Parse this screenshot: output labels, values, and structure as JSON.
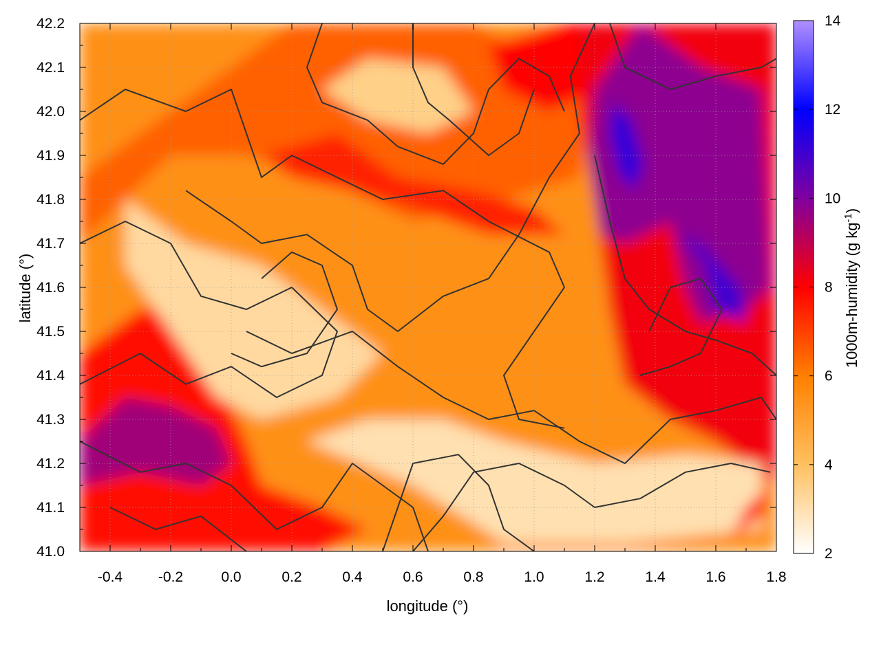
{
  "chart_data": {
    "type": "heatmap",
    "title": "",
    "xlabel": "longitude (°)",
    "ylabel": "latitude (°)",
    "colorbar_label_main": "1000m-humidity (g kg",
    "colorbar_label_exp": "-1",
    "colorbar_label_end": ")",
    "xlim": [
      -0.5,
      1.8
    ],
    "ylim": [
      41.0,
      42.2
    ],
    "x_ticks": [
      "-0.4",
      "-0.2",
      "0.0",
      "0.2",
      "0.4",
      "0.6",
      "0.8",
      "1.0",
      "1.2",
      "1.4",
      "1.6",
      "1.8"
    ],
    "x_tick_values": [
      -0.4,
      -0.2,
      0.0,
      0.2,
      0.4,
      0.6,
      0.8,
      1.0,
      1.2,
      1.4,
      1.6,
      1.8
    ],
    "y_ticks": [
      "41.0",
      "41.1",
      "41.2",
      "41.3",
      "41.4",
      "41.5",
      "41.6",
      "41.7",
      "41.8",
      "41.9",
      "42.0",
      "42.1",
      "42.2"
    ],
    "y_tick_values": [
      41.0,
      41.1,
      41.2,
      41.3,
      41.4,
      41.5,
      41.6,
      41.7,
      41.8,
      41.9,
      42.0,
      42.1,
      42.2
    ],
    "colorbar_range": [
      2,
      14
    ],
    "colorbar_ticks": [
      "2",
      "4",
      "6",
      "8",
      "10",
      "12",
      "14"
    ],
    "colorbar_tick_values": [
      2,
      4,
      6,
      8,
      10,
      12,
      14
    ],
    "colorscale": [
      {
        "v": 2,
        "color": "#ffffff"
      },
      {
        "v": 4,
        "color": "#ffc060"
      },
      {
        "v": 6,
        "color": "#ff8000"
      },
      {
        "v": 8,
        "color": "#ff0000"
      },
      {
        "v": 10,
        "color": "#8000a0"
      },
      {
        "v": 12,
        "color": "#0000ff"
      },
      {
        "v": 14,
        "color": "#b090ff"
      }
    ],
    "grid": true,
    "humidity_regions": [
      {
        "name": "background",
        "value": 5.5,
        "points": [
          [
            -0.5,
            41.0
          ],
          [
            1.8,
            41.0
          ],
          [
            1.8,
            42.2
          ],
          [
            -0.5,
            42.2
          ]
        ]
      },
      {
        "name": "north-orange",
        "value": 6.5,
        "points": [
          [
            -0.5,
            41.85
          ],
          [
            -0.3,
            41.95
          ],
          [
            -0.1,
            42.05
          ],
          [
            0.2,
            42.2
          ],
          [
            0.8,
            42.2
          ],
          [
            1.2,
            42.05
          ],
          [
            1.15,
            41.85
          ],
          [
            0.9,
            41.8
          ],
          [
            0.6,
            41.75
          ],
          [
            0.3,
            41.85
          ],
          [
            0.05,
            41.9
          ],
          [
            -0.2,
            41.9
          ],
          [
            -0.5,
            41.7
          ]
        ]
      },
      {
        "name": "red-band-north",
        "value": 7.5,
        "points": [
          [
            0.1,
            41.9
          ],
          [
            0.35,
            41.95
          ],
          [
            0.55,
            41.85
          ],
          [
            0.8,
            41.82
          ],
          [
            1.0,
            41.78
          ],
          [
            1.1,
            41.72
          ],
          [
            0.85,
            41.72
          ],
          [
            0.6,
            41.78
          ],
          [
            0.4,
            41.82
          ],
          [
            0.2,
            41.85
          ]
        ]
      },
      {
        "name": "red-northeast-top",
        "value": 8.0,
        "points": [
          [
            0.85,
            42.15
          ],
          [
            1.1,
            42.2
          ],
          [
            1.3,
            42.2
          ],
          [
            1.2,
            42.05
          ],
          [
            1.05,
            42.0
          ],
          [
            0.9,
            42.05
          ]
        ]
      },
      {
        "name": "east-red",
        "value": 8.2,
        "points": [
          [
            1.15,
            42.2
          ],
          [
            1.8,
            42.2
          ],
          [
            1.8,
            41.15
          ],
          [
            1.6,
            41.25
          ],
          [
            1.45,
            41.3
          ],
          [
            1.3,
            41.38
          ],
          [
            1.25,
            41.55
          ],
          [
            1.2,
            41.8
          ],
          [
            1.15,
            42.0
          ]
        ]
      },
      {
        "name": "east-purple",
        "value": 9.8,
        "points": [
          [
            1.2,
            42.05
          ],
          [
            1.35,
            42.2
          ],
          [
            1.55,
            42.1
          ],
          [
            1.75,
            42.05
          ],
          [
            1.78,
            41.6
          ],
          [
            1.7,
            41.55
          ],
          [
            1.55,
            41.52
          ],
          [
            1.5,
            41.6
          ],
          [
            1.45,
            41.75
          ],
          [
            1.3,
            41.7
          ],
          [
            1.22,
            41.72
          ],
          [
            1.18,
            41.9
          ]
        ]
      },
      {
        "name": "east-blue",
        "value": 11.2,
        "points": [
          [
            1.26,
            42.02
          ],
          [
            1.32,
            41.98
          ],
          [
            1.36,
            41.88
          ],
          [
            1.33,
            41.82
          ],
          [
            1.28,
            41.86
          ],
          [
            1.25,
            41.95
          ]
        ]
      },
      {
        "name": "east-blue-2",
        "value": 11.0,
        "points": [
          [
            1.48,
            41.72
          ],
          [
            1.56,
            41.66
          ],
          [
            1.6,
            41.55
          ],
          [
            1.7,
            41.52
          ],
          [
            1.68,
            41.6
          ],
          [
            1.55,
            41.7
          ]
        ]
      },
      {
        "name": "west-red",
        "value": 7.8,
        "points": [
          [
            -0.5,
            41.0
          ],
          [
            0.3,
            41.0
          ],
          [
            0.45,
            41.05
          ],
          [
            0.3,
            41.1
          ],
          [
            0.1,
            41.15
          ],
          [
            0.05,
            41.25
          ],
          [
            -0.05,
            41.4
          ],
          [
            -0.15,
            41.55
          ],
          [
            -0.3,
            41.55
          ],
          [
            -0.5,
            41.45
          ]
        ]
      },
      {
        "name": "west-purple",
        "value": 9.5,
        "points": [
          [
            -0.5,
            41.25
          ],
          [
            -0.35,
            41.35
          ],
          [
            -0.2,
            41.33
          ],
          [
            -0.05,
            41.28
          ],
          [
            0.0,
            41.2
          ],
          [
            -0.1,
            41.15
          ],
          [
            -0.3,
            41.18
          ],
          [
            -0.5,
            41.15
          ]
        ]
      },
      {
        "name": "pale-center",
        "value": 3.2,
        "points": [
          [
            -0.35,
            41.8
          ],
          [
            -0.15,
            41.7
          ],
          [
            0.1,
            41.65
          ],
          [
            0.3,
            41.55
          ],
          [
            0.5,
            41.45
          ],
          [
            0.35,
            41.35
          ],
          [
            0.1,
            41.3
          ],
          [
            -0.05,
            41.35
          ],
          [
            -0.2,
            41.5
          ],
          [
            -0.35,
            41.65
          ]
        ]
      },
      {
        "name": "pale-south",
        "value": 3.0,
        "points": [
          [
            0.25,
            41.25
          ],
          [
            0.6,
            41.15
          ],
          [
            0.9,
            41.02
          ],
          [
            1.3,
            41.02
          ],
          [
            1.75,
            41.05
          ],
          [
            1.75,
            41.2
          ],
          [
            1.5,
            41.22
          ],
          [
            1.2,
            41.2
          ],
          [
            0.9,
            41.25
          ],
          [
            0.7,
            41.3
          ],
          [
            0.45,
            41.3
          ]
        ]
      },
      {
        "name": "pale-north",
        "value": 3.5,
        "points": [
          [
            0.3,
            42.05
          ],
          [
            0.45,
            42.12
          ],
          [
            0.7,
            42.1
          ],
          [
            0.8,
            42.0
          ],
          [
            0.65,
            41.95
          ],
          [
            0.45,
            41.98
          ]
        ]
      },
      {
        "name": "southeast-red-spot",
        "value": 8.0,
        "points": [
          [
            1.65,
            41.03
          ],
          [
            1.75,
            41.08
          ],
          [
            1.78,
            41.15
          ],
          [
            1.7,
            41.1
          ]
        ]
      }
    ],
    "terrain_contours": [
      [
        [
          -0.5,
          41.98
        ],
        [
          -0.35,
          42.05
        ],
        [
          -0.15,
          42.0
        ],
        [
          0.0,
          42.05
        ],
        [
          0.05,
          41.95
        ],
        [
          0.1,
          41.85
        ],
        [
          0.2,
          41.9
        ],
        [
          0.35,
          41.85
        ],
        [
          0.5,
          41.8
        ],
        [
          0.7,
          41.82
        ],
        [
          0.85,
          41.75
        ],
        [
          1.05,
          41.68
        ],
        [
          1.1,
          41.6
        ],
        [
          1.0,
          41.5
        ],
        [
          0.9,
          41.4
        ],
        [
          0.95,
          41.3
        ],
        [
          1.1,
          41.28
        ]
      ],
      [
        [
          -0.5,
          41.7
        ],
        [
          -0.35,
          41.75
        ],
        [
          -0.2,
          41.7
        ],
        [
          -0.1,
          41.58
        ],
        [
          0.05,
          41.55
        ],
        [
          0.2,
          41.6
        ],
        [
          0.35,
          41.5
        ],
        [
          0.3,
          41.4
        ],
        [
          0.15,
          41.35
        ],
        [
          0.0,
          41.42
        ],
        [
          -0.15,
          41.38
        ],
        [
          -0.3,
          41.45
        ],
        [
          -0.5,
          41.38
        ]
      ],
      [
        [
          -0.5,
          41.25
        ],
        [
          -0.3,
          41.18
        ],
        [
          -0.15,
          41.2
        ],
        [
          0.0,
          41.15
        ],
        [
          0.15,
          41.05
        ],
        [
          0.3,
          41.1
        ],
        [
          0.4,
          41.2
        ],
        [
          0.5,
          41.15
        ],
        [
          0.6,
          41.1
        ],
        [
          0.65,
          41.0
        ]
      ],
      [
        [
          0.05,
          41.5
        ],
        [
          0.2,
          41.45
        ],
        [
          0.4,
          41.5
        ],
        [
          0.55,
          41.42
        ],
        [
          0.7,
          41.35
        ],
        [
          0.85,
          41.3
        ],
        [
          1.0,
          41.32
        ],
        [
          1.15,
          41.25
        ],
        [
          1.3,
          41.2
        ],
        [
          1.45,
          41.3
        ],
        [
          1.6,
          41.32
        ],
        [
          1.75,
          41.35
        ],
        [
          1.8,
          41.3
        ]
      ],
      [
        [
          -0.15,
          41.82
        ],
        [
          0.0,
          41.75
        ],
        [
          0.1,
          41.7
        ],
        [
          0.25,
          41.72
        ],
        [
          0.4,
          41.65
        ],
        [
          0.45,
          41.55
        ],
        [
          0.55,
          41.5
        ],
        [
          0.7,
          41.58
        ],
        [
          0.85,
          41.62
        ],
        [
          0.95,
          41.72
        ],
        [
          1.05,
          41.85
        ],
        [
          1.15,
          41.95
        ],
        [
          1.12,
          42.08
        ],
        [
          1.2,
          42.2
        ]
      ],
      [
        [
          0.3,
          42.2
        ],
        [
          0.25,
          42.1
        ],
        [
          0.3,
          42.02
        ],
        [
          0.45,
          41.98
        ],
        [
          0.55,
          41.92
        ],
        [
          0.7,
          41.88
        ],
        [
          0.8,
          41.95
        ],
        [
          0.85,
          42.05
        ],
        [
          0.95,
          42.12
        ],
        [
          1.05,
          42.08
        ],
        [
          1.1,
          42.0
        ]
      ],
      [
        [
          0.5,
          41.0
        ],
        [
          0.55,
          41.1
        ],
        [
          0.6,
          41.2
        ],
        [
          0.75,
          41.22
        ],
        [
          0.85,
          41.15
        ],
        [
          0.9,
          41.05
        ],
        [
          1.0,
          41.0
        ]
      ],
      [
        [
          0.6,
          41.0
        ],
        [
          0.7,
          41.08
        ],
        [
          0.8,
          41.18
        ],
        [
          0.95,
          41.2
        ],
        [
          1.1,
          41.15
        ],
        [
          1.2,
          41.1
        ],
        [
          1.35,
          41.12
        ],
        [
          1.5,
          41.18
        ],
        [
          1.65,
          41.2
        ],
        [
          1.78,
          41.18
        ]
      ],
      [
        [
          1.2,
          41.9
        ],
        [
          1.25,
          41.75
        ],
        [
          1.3,
          41.62
        ],
        [
          1.38,
          41.55
        ],
        [
          1.5,
          41.5
        ],
        [
          1.6,
          41.48
        ],
        [
          1.72,
          41.45
        ],
        [
          1.8,
          41.4
        ]
      ],
      [
        [
          1.25,
          42.2
        ],
        [
          1.3,
          42.1
        ],
        [
          1.45,
          42.05
        ],
        [
          1.6,
          42.08
        ],
        [
          1.75,
          42.1
        ],
        [
          1.8,
          42.12
        ]
      ],
      [
        [
          0.6,
          42.2
        ],
        [
          0.6,
          42.1
        ],
        [
          0.65,
          42.02
        ],
        [
          0.72,
          41.98
        ],
        [
          0.85,
          41.9
        ],
        [
          0.95,
          41.95
        ],
        [
          1.0,
          42.05
        ]
      ],
      [
        [
          -0.4,
          41.1
        ],
        [
          -0.25,
          41.05
        ],
        [
          -0.1,
          41.08
        ],
        [
          0.05,
          41.0
        ]
      ],
      [
        [
          0.0,
          41.45
        ],
        [
          0.1,
          41.42
        ],
        [
          0.25,
          41.45
        ],
        [
          0.35,
          41.55
        ],
        [
          0.3,
          41.65
        ],
        [
          0.2,
          41.68
        ],
        [
          0.1,
          41.62
        ]
      ],
      [
        [
          1.35,
          41.4
        ],
        [
          1.45,
          41.42
        ],
        [
          1.55,
          41.45
        ],
        [
          1.62,
          41.55
        ],
        [
          1.55,
          41.62
        ],
        [
          1.45,
          41.6
        ],
        [
          1.38,
          41.5
        ]
      ]
    ]
  }
}
